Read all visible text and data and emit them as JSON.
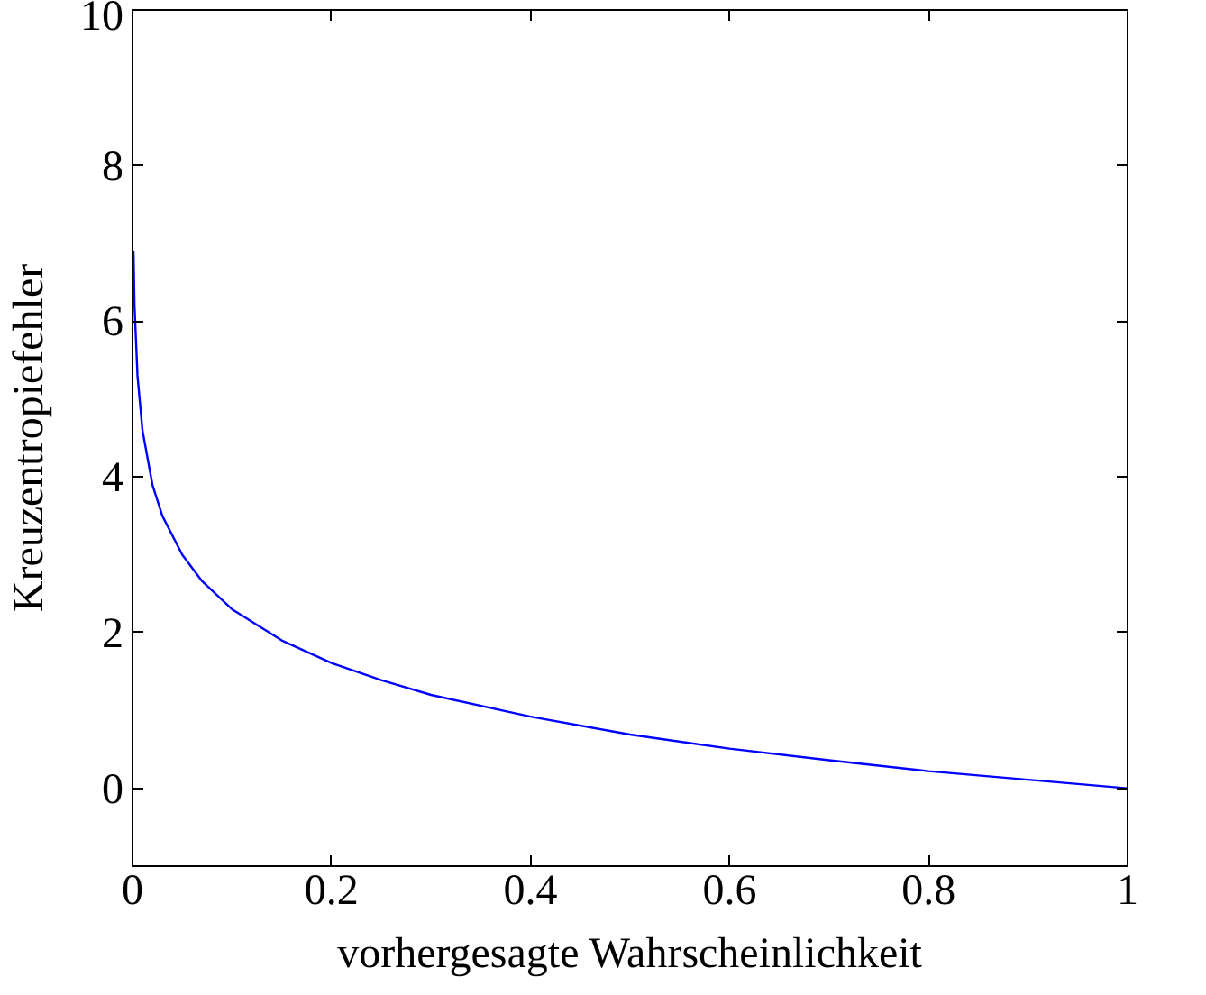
{
  "chart_data": {
    "type": "line",
    "xlabel": "vorhergesagte Wahrscheinlichkeit",
    "ylabel": "Kreuzentropiefehler",
    "x": [
      0.001,
      0.002,
      0.005,
      0.01,
      0.02,
      0.03,
      0.05,
      0.07,
      0.1,
      0.15,
      0.2,
      0.25,
      0.3,
      0.4,
      0.5,
      0.6,
      0.7,
      0.8,
      0.9,
      1.0
    ],
    "series": [
      {
        "color": "#0000ff",
        "values": [
          6.9,
          6.2,
          5.3,
          4.6,
          3.9,
          3.5,
          3.0,
          2.66,
          2.3,
          1.9,
          1.61,
          1.39,
          1.2,
          0.92,
          0.69,
          0.51,
          0.36,
          0.22,
          0.11,
          0.0
        ]
      }
    ],
    "xlim": [
      0,
      1
    ],
    "ylim": [
      -1,
      10
    ],
    "xticks": [
      0,
      0.2,
      0.4,
      0.6,
      0.8,
      1
    ],
    "yticks": [
      0,
      2,
      4,
      6,
      8,
      10
    ],
    "marker": "none",
    "line_style": "solid"
  }
}
